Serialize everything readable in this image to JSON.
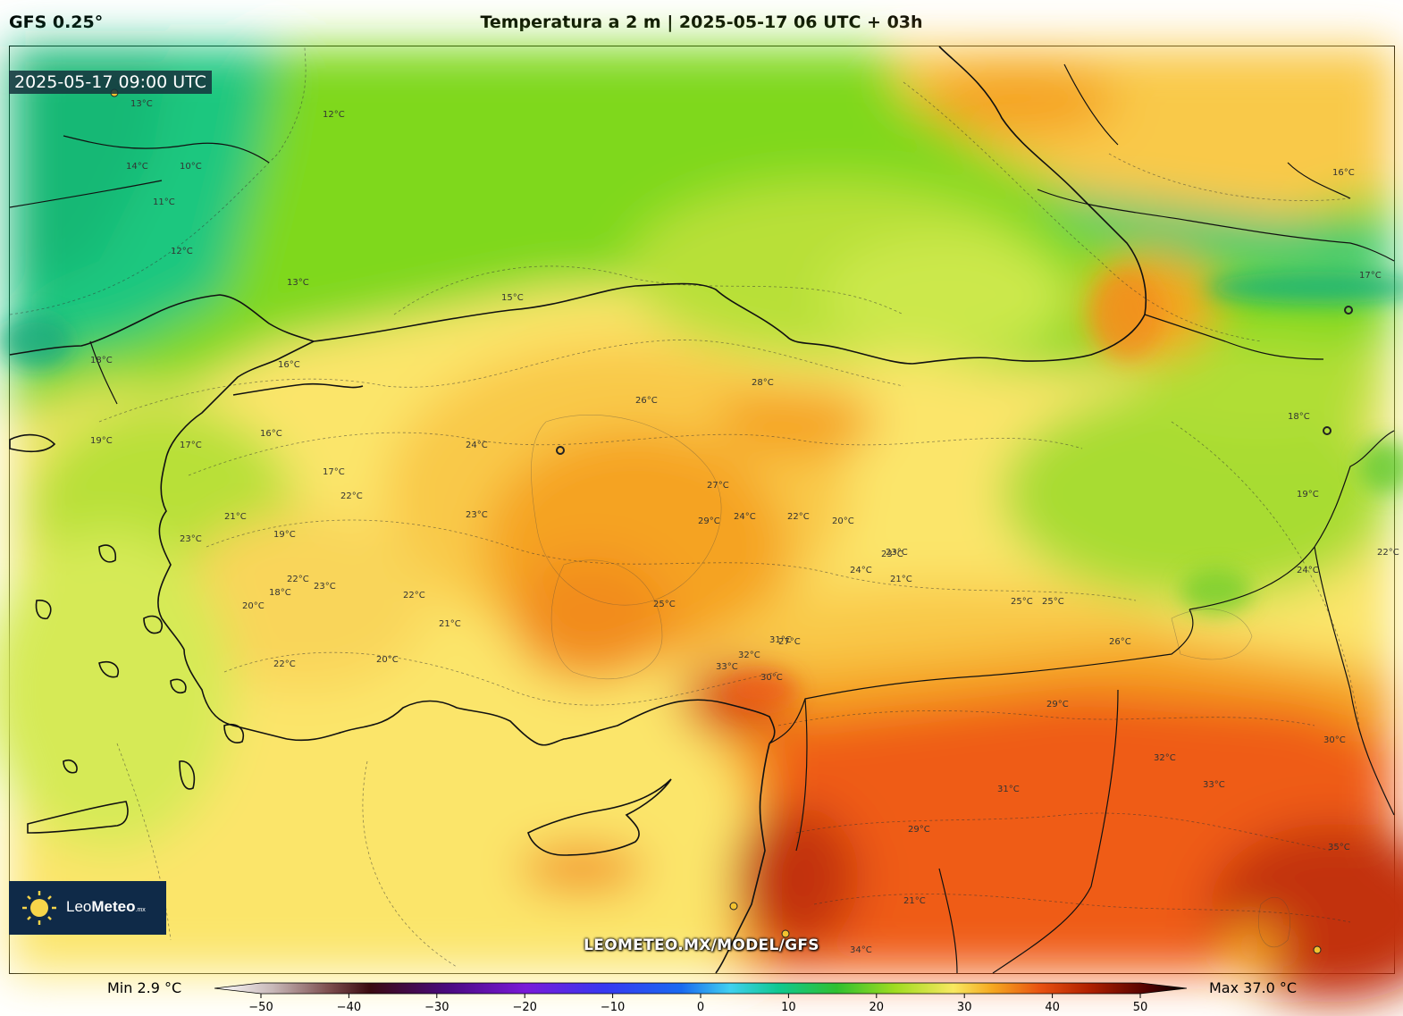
{
  "header": {
    "model": "GFS 0.25°",
    "title": "Temperatura a 2 m | 2025-05-17 06 UTC + 03h"
  },
  "map": {
    "valid_time": "2025-05-17 09:00 UTC",
    "watermark": "LEOMETEO.MX/MODEL/GFS",
    "logo": {
      "name": "Leo",
      "bold": "Meteo",
      "suffix": ".mx"
    },
    "contour_labels": [
      "13°C",
      "12°C",
      "14°C",
      "10°C",
      "11°C",
      "12°C",
      "13°C",
      "15°C",
      "16°C",
      "17°C",
      "18°C",
      "19°C",
      "16°C",
      "17°C",
      "22°C",
      "21°C",
      "19°C",
      "23°C",
      "22°C",
      "20°C",
      "23°C",
      "22°C",
      "21°C",
      "20°C",
      "22°C",
      "18°C",
      "23°C",
      "24°C",
      "26°C",
      "28°C",
      "27°C",
      "29°C",
      "25°C",
      "24°C",
      "22°C",
      "20°C",
      "23°C",
      "24°C",
      "21°C",
      "25°C",
      "26°C",
      "29°C",
      "31°C",
      "32°C",
      "33°C",
      "30°C",
      "31°C",
      "32°C",
      "33°C",
      "34°C",
      "35°C",
      "30°C",
      "29°C",
      "27°C",
      "16°C",
      "17°C",
      "18°C",
      "19°C",
      "21°C",
      "25°C",
      "23°C",
      "22°C",
      "24°C"
    ],
    "colors": {
      "cool": "#1fc77f",
      "green": "#7fd81a",
      "lime": "#c8e84a",
      "yellow": "#fbe56b",
      "orange": "#f5a324",
      "red_orange": "#ef5b13",
      "deep_red": "#c23308",
      "coast": "#111111"
    }
  },
  "colorbar": {
    "min_label": "Min 2.9 °C",
    "max_label": "Max 37.0 °C",
    "ticks": [
      "−50",
      "−40",
      "−30",
      "−20",
      "−10",
      "0",
      "10",
      "20",
      "30",
      "40",
      "50"
    ],
    "tick_values": [
      -50,
      -40,
      -30,
      -20,
      -10,
      0,
      10,
      20,
      30,
      40,
      50
    ]
  }
}
